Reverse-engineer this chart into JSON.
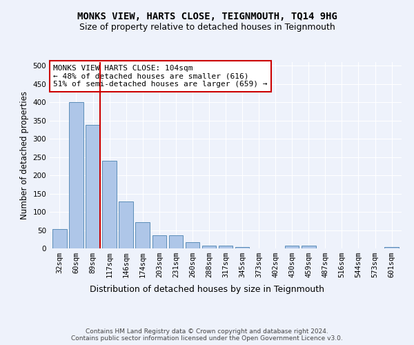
{
  "title": "MONKS VIEW, HARTS CLOSE, TEIGNMOUTH, TQ14 9HG",
  "subtitle": "Size of property relative to detached houses in Teignmouth",
  "xlabel": "Distribution of detached houses by size in Teignmouth",
  "ylabel": "Number of detached properties",
  "categories": [
    "32sqm",
    "60sqm",
    "89sqm",
    "117sqm",
    "146sqm",
    "174sqm",
    "203sqm",
    "231sqm",
    "260sqm",
    "288sqm",
    "317sqm",
    "345sqm",
    "373sqm",
    "402sqm",
    "430sqm",
    "459sqm",
    "487sqm",
    "516sqm",
    "544sqm",
    "573sqm",
    "601sqm"
  ],
  "values": [
    52,
    400,
    338,
    240,
    128,
    72,
    35,
    35,
    17,
    8,
    8,
    4,
    0,
    0,
    7,
    7,
    0,
    0,
    0,
    0,
    4
  ],
  "bar_color": "#aec6e8",
  "bar_edgecolor": "#5b8db8",
  "vline_x": 2.43,
  "vline_color": "#cc0000",
  "annotation_text": "MONKS VIEW HARTS CLOSE: 104sqm\n← 48% of detached houses are smaller (616)\n51% of semi-detached houses are larger (659) →",
  "annotation_box_color": "#ffffff",
  "annotation_box_edgecolor": "#cc0000",
  "ylim": [
    0,
    510
  ],
  "yticks": [
    0,
    50,
    100,
    150,
    200,
    250,
    300,
    350,
    400,
    450,
    500
  ],
  "background_color": "#eef2fb",
  "grid_color": "#ffffff",
  "footer": "Contains HM Land Registry data © Crown copyright and database right 2024.\nContains public sector information licensed under the Open Government Licence v3.0.",
  "title_fontsize": 10,
  "subtitle_fontsize": 9,
  "xlabel_fontsize": 9,
  "ylabel_fontsize": 8.5,
  "tick_fontsize": 7.5,
  "annotation_fontsize": 8,
  "footer_fontsize": 6.5
}
